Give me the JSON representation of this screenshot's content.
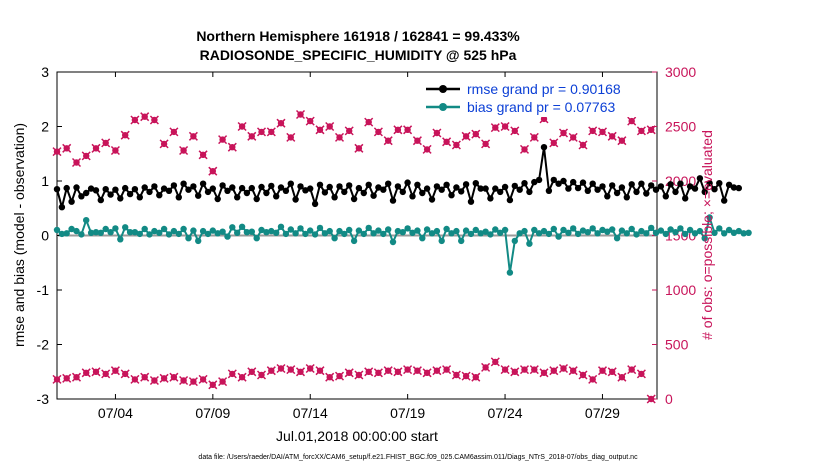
{
  "chart_data": {
    "type": "line",
    "title_line1": "Northern Hemisphere 161918 / 162841 = 99.433%",
    "title_line2": "RADIOSONDE_SPECIFIC_HUMIDITY @ 525 hPa",
    "xlabel": "Jul.01,2018 00:00:00 start",
    "ylabel_left": "rmse and bias (model - observation)",
    "ylabel_right": "# of obs: o=possible; ×=evaluated",
    "ylim_left": [
      -3,
      3
    ],
    "ylim_right": [
      0,
      3000
    ],
    "xlim_days": [
      1,
      31.8
    ],
    "left_ticks": [
      "-3",
      "-2",
      "-1",
      "0",
      "1",
      "2",
      "3"
    ],
    "left_tick_values": [
      -3,
      -2,
      -1,
      0,
      1,
      2,
      3
    ],
    "right_ticks": [
      "0",
      "500",
      "1000",
      "1500",
      "2000",
      "2500",
      "3000"
    ],
    "right_tick_values": [
      0,
      500,
      1000,
      1500,
      2000,
      2500,
      3000
    ],
    "x_ticks": [
      "07/04",
      "07/09",
      "07/14",
      "07/19",
      "07/24",
      "07/29"
    ],
    "x_tick_days": [
      4,
      9,
      14,
      19,
      24,
      29
    ],
    "legend": {
      "rmse_label": "rmse grand pr = 0.90168",
      "bias_label": "bias grand pr = 0.07763"
    },
    "footer": "data file: /Users/raeder/DAI/ATM_forcXX/CAM6_setup/f.e21.FHIST_BGC.f09_025.CAM6assim.011/Diags_NTrS_2018-07/obs_diag_output.nc",
    "colors": {
      "rmse": "#000000",
      "bias": "#128a85",
      "obs": "#c8145a",
      "zero_line": "#9a9a9a"
    },
    "series": [
      {
        "name": "rmse",
        "axis": "left",
        "start_day": 1.0,
        "step_days": 0.25,
        "values": [
          0.85,
          0.52,
          0.87,
          0.62,
          0.88,
          0.72,
          0.78,
          0.86,
          0.83,
          0.65,
          0.85,
          0.75,
          0.84,
          0.68,
          0.87,
          0.76,
          0.85,
          0.7,
          0.88,
          0.8,
          0.9,
          0.74,
          0.86,
          0.82,
          0.92,
          0.7,
          0.95,
          0.84,
          0.9,
          0.73,
          0.95,
          0.8,
          0.86,
          0.67,
          0.92,
          0.82,
          0.88,
          0.7,
          0.87,
          0.78,
          0.87,
          0.67,
          0.89,
          0.78,
          0.91,
          0.72,
          0.88,
          0.82,
          0.95,
          0.66,
          0.9,
          0.83,
          0.86,
          0.58,
          0.93,
          0.79,
          0.89,
          0.7,
          0.9,
          0.8,
          0.92,
          0.67,
          0.87,
          0.78,
          0.93,
          0.73,
          0.88,
          0.84,
          0.95,
          0.64,
          0.9,
          0.8,
          0.97,
          0.72,
          0.93,
          0.78,
          0.86,
          0.66,
          0.9,
          0.84,
          0.93,
          0.74,
          0.88,
          0.81,
          0.94,
          0.62,
          0.96,
          0.86,
          0.86,
          0.68,
          0.86,
          0.8,
          0.89,
          0.65,
          0.91,
          0.84,
          0.96,
          0.8,
          0.98,
          1.02,
          1.62,
          0.82,
          1.02,
          0.95,
          1.0,
          0.86,
          0.98,
          0.87,
          0.97,
          0.82,
          0.95,
          0.84,
          0.9,
          0.72,
          0.92,
          0.78,
          0.88,
          0.7,
          0.94,
          0.8,
          0.95,
          0.77,
          0.92,
          0.84,
          0.9,
          0.72,
          0.94,
          0.8,
          0.95,
          0.68,
          0.9,
          0.86,
          1.05,
          0.8,
          0.96,
          0.85,
          0.96,
          0.64,
          0.93,
          0.88,
          0.87
        ]
      },
      {
        "name": "bias",
        "axis": "left",
        "start_day": 1.0,
        "step_days": 0.25,
        "values": [
          0.1,
          0.03,
          0.04,
          0.12,
          0.08,
          0.02,
          0.28,
          0.05,
          0.06,
          0.05,
          0.12,
          0.06,
          0.13,
          -0.07,
          0.15,
          0.06,
          0.06,
          0.03,
          0.12,
          0.02,
          0.08,
          0.05,
          0.12,
          0.02,
          0.08,
          0.03,
          0.12,
          -0.05,
          0.09,
          -0.1,
          0.08,
          0.03,
          0.09,
          0.04,
          0.07,
          -0.02,
          0.15,
          0.05,
          0.16,
          0.06,
          0.07,
          -0.05,
          0.1,
          0.06,
          0.08,
          0.05,
          0.16,
          0.03,
          0.11,
          0.04,
          0.13,
          0.03,
          0.09,
          0.02,
          0.14,
          0.04,
          0.08,
          -0.05,
          0.08,
          0.03,
          0.1,
          -0.1,
          0.09,
          0.03,
          0.14,
          0.04,
          0.09,
          0.03,
          0.11,
          -0.12,
          0.08,
          0.06,
          0.13,
          0.05,
          0.09,
          -0.05,
          0.11,
          0.04,
          0.08,
          -0.1,
          0.12,
          0.04,
          0.08,
          -0.1,
          0.09,
          0.03,
          0.1,
          0.04,
          0.07,
          0.02,
          0.11,
          0.05,
          0.1,
          -0.68,
          -0.1,
          0.04,
          0.08,
          -0.15,
          0.1,
          0.04,
          0.08,
          0.03,
          0.12,
          -0.02,
          0.1,
          0.05,
          0.13,
          0.03,
          0.09,
          0.06,
          0.13,
          0.04,
          0.1,
          0.07,
          0.11,
          -0.05,
          0.09,
          0.04,
          0.12,
          0.02,
          0.08,
          0.04,
          0.14,
          0.05,
          0.09,
          0.03,
          0.11,
          0.06,
          0.13,
          0.03,
          0.1,
          0.04,
          0.08,
          -0.05,
          0.33,
          0.05,
          0.13,
          0.04,
          0.1,
          0.05,
          0.08,
          0.04,
          0.05
        ]
      },
      {
        "name": "obs_possible_evaluated",
        "axis": "right",
        "start_day": 1.0,
        "step_days": 0.5,
        "values": [
          [
            2270,
            180
          ],
          [
            2300,
            190
          ],
          [
            2170,
            200
          ],
          [
            2230,
            240
          ],
          [
            2300,
            250
          ],
          [
            2350,
            230
          ],
          [
            2280,
            260
          ],
          [
            2420,
            230
          ],
          [
            2560,
            180
          ],
          [
            2590,
            200
          ],
          [
            2560,
            170
          ],
          [
            2340,
            190
          ],
          [
            2450,
            200
          ],
          [
            2280,
            170
          ],
          [
            2410,
            160
          ],
          [
            2240,
            180
          ],
          [
            2090,
            130
          ],
          [
            2380,
            160
          ],
          [
            2310,
            230
          ],
          [
            2500,
            200
          ],
          [
            2410,
            250
          ],
          [
            2450,
            220
          ],
          [
            2450,
            260
          ],
          [
            2530,
            280
          ],
          [
            2400,
            270
          ],
          [
            2610,
            250
          ],
          [
            2550,
            280
          ],
          [
            2470,
            260
          ],
          [
            2500,
            200
          ],
          [
            2400,
            210
          ],
          [
            2460,
            240
          ],
          [
            2300,
            220
          ],
          [
            2540,
            250
          ],
          [
            2450,
            240
          ],
          [
            2370,
            260
          ],
          [
            2470,
            250
          ],
          [
            2470,
            270
          ],
          [
            2370,
            260
          ],
          [
            2290,
            240
          ],
          [
            2440,
            260
          ],
          [
            2360,
            270
          ],
          [
            2330,
            220
          ],
          [
            2410,
            210
          ],
          [
            2430,
            200
          ],
          [
            2340,
            290
          ],
          [
            2490,
            340
          ],
          [
            2500,
            270
          ],
          [
            2460,
            250
          ],
          [
            2290,
            270
          ],
          [
            2400,
            270
          ],
          [
            2570,
            240
          ],
          [
            2350,
            260
          ],
          [
            2440,
            280
          ],
          [
            2400,
            260
          ],
          [
            2330,
            220
          ],
          [
            2460,
            180
          ],
          [
            2450,
            260
          ],
          [
            2410,
            250
          ],
          [
            2370,
            200
          ],
          [
            2550,
            270
          ],
          [
            2460,
            230
          ],
          [
            2470,
            0
          ]
        ]
      }
    ]
  }
}
